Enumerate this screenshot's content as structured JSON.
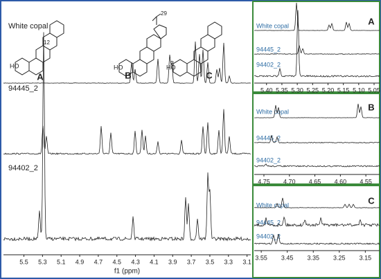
{
  "chart_data": [
    {
      "type": "spectrum",
      "xlabel": "f1 (ppm)",
      "traces": [
        "White copal",
        "94445_2",
        "94402_2"
      ],
      "xlim": [
        5.72,
        3.06
      ],
      "xticks": [
        5.5,
        5.3,
        5.1,
        4.9,
        4.7,
        4.5,
        4.3,
        4.1,
        3.9,
        3.7,
        3.5,
        3.3,
        3.1
      ],
      "structures": {
        "labels": [
          "A",
          "B",
          "C"
        ],
        "atoms": [
          "12",
          "29",
          "3",
          "HO",
          "HO",
          "HO"
        ]
      }
    },
    {
      "type": "spectrum",
      "title": "A",
      "traces": [
        "White copal",
        "94445_2",
        "94402_2"
      ],
      "xlim": [
        5.44,
        5.032
      ],
      "xticks": [
        {
          "value": 5.4,
          "label": "5.40"
        },
        5.35,
        {
          "value": 5.3,
          "label": "5.30"
        },
        5.25,
        {
          "value": 5.2,
          "label": "5.20"
        },
        5.15,
        {
          "value": 5.1,
          "label": "5.10"
        },
        5.05
      ]
    },
    {
      "type": "spectrum",
      "title": "B",
      "traces": [
        "White copal",
        "94445_2",
        "94402_2"
      ],
      "xlim": [
        4.769,
        4.523
      ],
      "xticks": [
        4.75,
        {
          "value": 4.7,
          "label": "4.70"
        },
        4.65,
        {
          "value": 4.6,
          "label": "4.60"
        },
        4.55
      ]
    },
    {
      "type": "spectrum",
      "title": "C",
      "traces": [
        "White copal",
        "94445_2",
        "94402_2"
      ],
      "xlim": [
        3.577,
        3.095
      ],
      "xticks": [
        3.55,
        3.45,
        3.35,
        3.25,
        3.15
      ]
    }
  ]
}
